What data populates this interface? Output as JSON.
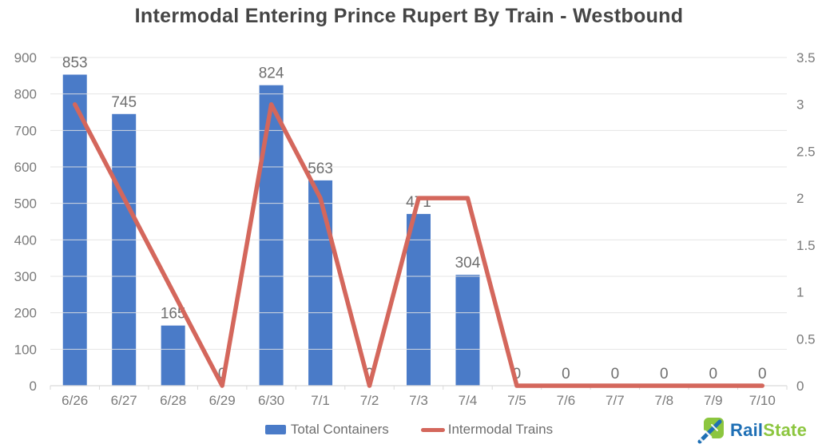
{
  "title": "Intermodal Entering Prince Rupert By Train - Westbound",
  "chart_data": {
    "type": "combo",
    "title": "Intermodal Entering Prince Rupert By Train - Westbound",
    "categories": [
      "6/26",
      "6/27",
      "6/28",
      "6/29",
      "6/30",
      "7/1",
      "7/2",
      "7/3",
      "7/4",
      "7/5",
      "7/6",
      "7/7",
      "7/8",
      "7/9",
      "7/10"
    ],
    "series": [
      {
        "name": "Total Containers",
        "type": "bar",
        "axis": "left",
        "color": "#4a7bc8",
        "values": [
          853,
          745,
          165,
          0,
          824,
          563,
          0,
          471,
          304,
          0,
          0,
          0,
          0,
          0,
          0
        ],
        "data_labels": [
          "853",
          "745",
          "165",
          "0",
          "824",
          "563",
          "0",
          "471",
          "304",
          "0",
          "0",
          "0",
          "0",
          "0",
          "0"
        ]
      },
      {
        "name": "Intermodal Trains",
        "type": "line",
        "axis": "right",
        "color": "#d4675c",
        "values": [
          3,
          2,
          1,
          0,
          3,
          2,
          0,
          2,
          2,
          0,
          0,
          0,
          0,
          0,
          0
        ]
      }
    ],
    "axes": {
      "left": {
        "min": 0,
        "max": 900,
        "ticks": [
          "0",
          "100",
          "200",
          "300",
          "400",
          "500",
          "600",
          "700",
          "800",
          "900"
        ]
      },
      "right": {
        "min": 0,
        "max": 3.5,
        "ticks": [
          "0",
          "0.5",
          "1",
          "1.5",
          "2",
          "2.5",
          "3",
          "3.5"
        ]
      }
    },
    "grid": "horizontal",
    "legend_position": "bottom",
    "styles": {
      "grid_color": "#e3e3e3",
      "axis_line_color": "#d9d9d9",
      "tick_label_color": "#7a7a7a",
      "data_label_color": "#6f6f6f"
    }
  },
  "logo": {
    "rail": "Rail",
    "state": "State",
    "rail_color": "#1e6fb5",
    "state_color": "#8cc63f"
  }
}
